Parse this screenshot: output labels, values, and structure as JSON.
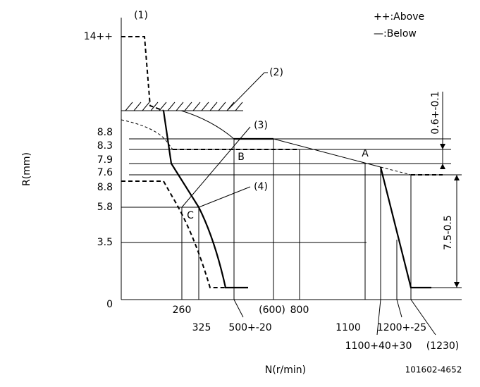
{
  "legend": [
    "++:Above",
    "—:Below"
  ],
  "y_axis_label": "R(mm)",
  "x_axis_label": "N(r/min)",
  "y_labels": [
    "14++",
    "8.8",
    "8.3",
    "7.9",
    "7.6",
    "8.8",
    "5.8",
    "3.5",
    "0"
  ],
  "x_labels": [
    "260",
    "325",
    "500+-20",
    "(600)",
    "800",
    "1100",
    "1100+40+30",
    "1200+-25",
    "(1230)"
  ],
  "callouts": [
    "(1)",
    "(2)",
    "(3)",
    "(4)"
  ],
  "points": [
    "A",
    "B",
    "C"
  ],
  "dimensions": [
    "0.6+-0.1",
    "7.5-0.5"
  ],
  "code": "101602-4652"
}
